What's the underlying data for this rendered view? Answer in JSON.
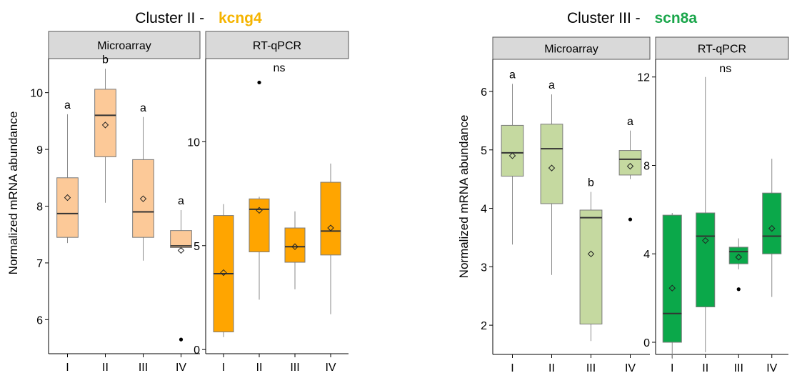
{
  "colors": {
    "kcng4_title": "#f5b400",
    "scn8a_title": "#1aa64b",
    "microarray_fill_1": "#fcc998",
    "rtqpcr_fill_1": "#ffa500",
    "microarray_fill_2": "#c5d9a0",
    "rtqpcr_fill_2": "#0ba84a",
    "strip_fill": "#d9d9d9"
  },
  "chart_data": [
    {
      "type": "boxplot",
      "title_prefix": "Cluster II - ",
      "gene": "kcng4",
      "ylabel": "Normalized mRNA abundance",
      "categories": [
        "I",
        "II",
        "III",
        "IV"
      ],
      "facets": [
        {
          "strip": "Microarray",
          "ylim": [
            5.4,
            10.6
          ],
          "yticks": [
            6,
            7,
            8,
            9,
            10
          ],
          "boxes": [
            {
              "min": 7.35,
              "q1": 7.45,
              "median": 7.87,
              "q3": 8.5,
              "max": 9.62,
              "mean": 8.15,
              "outliers": [],
              "label": "a"
            },
            {
              "min": 8.06,
              "q1": 8.87,
              "median": 9.6,
              "q3": 10.06,
              "max": 10.42,
              "mean": 9.43,
              "outliers": [],
              "label": "b"
            },
            {
              "min": 7.04,
              "q1": 7.45,
              "median": 7.9,
              "q3": 8.82,
              "max": 9.57,
              "mean": 8.13,
              "outliers": [],
              "label": "a"
            },
            {
              "min": 7.24,
              "q1": 7.27,
              "median": 7.3,
              "q3": 7.57,
              "max": 7.93,
              "mean": 7.22,
              "outliers": [
                5.65
              ],
              "label": "a"
            }
          ]
        },
        {
          "strip": "RT-qPCR",
          "ylim": [
            -0.2,
            14.0
          ],
          "yticks": [
            0,
            5,
            10
          ],
          "boxes": [
            {
              "min": 0.6,
              "q1": 0.85,
              "median": 3.65,
              "q3": 6.45,
              "max": 7.0,
              "mean": 3.7,
              "outliers": []
            },
            {
              "min": 2.4,
              "q1": 4.7,
              "median": 6.75,
              "q3": 7.25,
              "max": 7.35,
              "mean": 6.7,
              "outliers": [
                12.85
              ]
            },
            {
              "min": 2.9,
              "q1": 4.2,
              "median": 4.95,
              "q3": 5.85,
              "max": 6.65,
              "mean": 4.95,
              "outliers": []
            },
            {
              "min": 1.7,
              "q1": 4.55,
              "median": 5.7,
              "q3": 8.05,
              "max": 8.95,
              "mean": 5.85,
              "outliers": []
            }
          ],
          "annotation": "ns"
        }
      ]
    },
    {
      "type": "boxplot",
      "title_prefix": "Cluster III - ",
      "gene": "scn8a",
      "ylabel": "Normalized mRNA abundance",
      "categories": [
        "I",
        "II",
        "III",
        "IV"
      ],
      "facets": [
        {
          "strip": "Microarray",
          "ylim": [
            1.5,
            6.55
          ],
          "yticks": [
            2,
            3,
            4,
            5,
            6
          ],
          "boxes": [
            {
              "min": 3.38,
              "q1": 4.55,
              "median": 4.95,
              "q3": 5.42,
              "max": 6.13,
              "mean": 4.9,
              "outliers": [],
              "label": "a"
            },
            {
              "min": 2.86,
              "q1": 4.08,
              "median": 5.02,
              "q3": 5.44,
              "max": 5.95,
              "mean": 4.69,
              "outliers": [],
              "label": "a"
            },
            {
              "min": 1.73,
              "q1": 2.02,
              "median": 3.84,
              "q3": 3.97,
              "max": 4.28,
              "mean": 3.22,
              "outliers": [],
              "label": "b"
            },
            {
              "min": 4.5,
              "q1": 4.57,
              "median": 4.84,
              "q3": 4.99,
              "max": 5.33,
              "mean": 4.72,
              "outliers": [
                3.81
              ],
              "label": "a"
            }
          ]
        },
        {
          "strip": "RT-qPCR",
          "ylim": [
            -0.55,
            12.8
          ],
          "yticks": [
            0,
            4,
            8,
            12
          ],
          "boxes": [
            {
              "min": -0.75,
              "q1": 0.0,
              "median": 1.3,
              "q3": 5.75,
              "max": 5.85,
              "mean": 2.45,
              "outliers": []
            },
            {
              "min": -0.45,
              "q1": 1.6,
              "median": 4.8,
              "q3": 5.85,
              "max": 12.0,
              "mean": 4.6,
              "outliers": []
            },
            {
              "min": 3.3,
              "q1": 3.55,
              "median": 4.1,
              "q3": 4.3,
              "max": 4.7,
              "mean": 3.85,
              "outliers": [
                2.4
              ]
            },
            {
              "min": 2.05,
              "q1": 4.0,
              "median": 4.8,
              "q3": 6.75,
              "max": 8.3,
              "mean": 5.15,
              "outliers": []
            }
          ],
          "annotation": "ns"
        }
      ]
    }
  ]
}
